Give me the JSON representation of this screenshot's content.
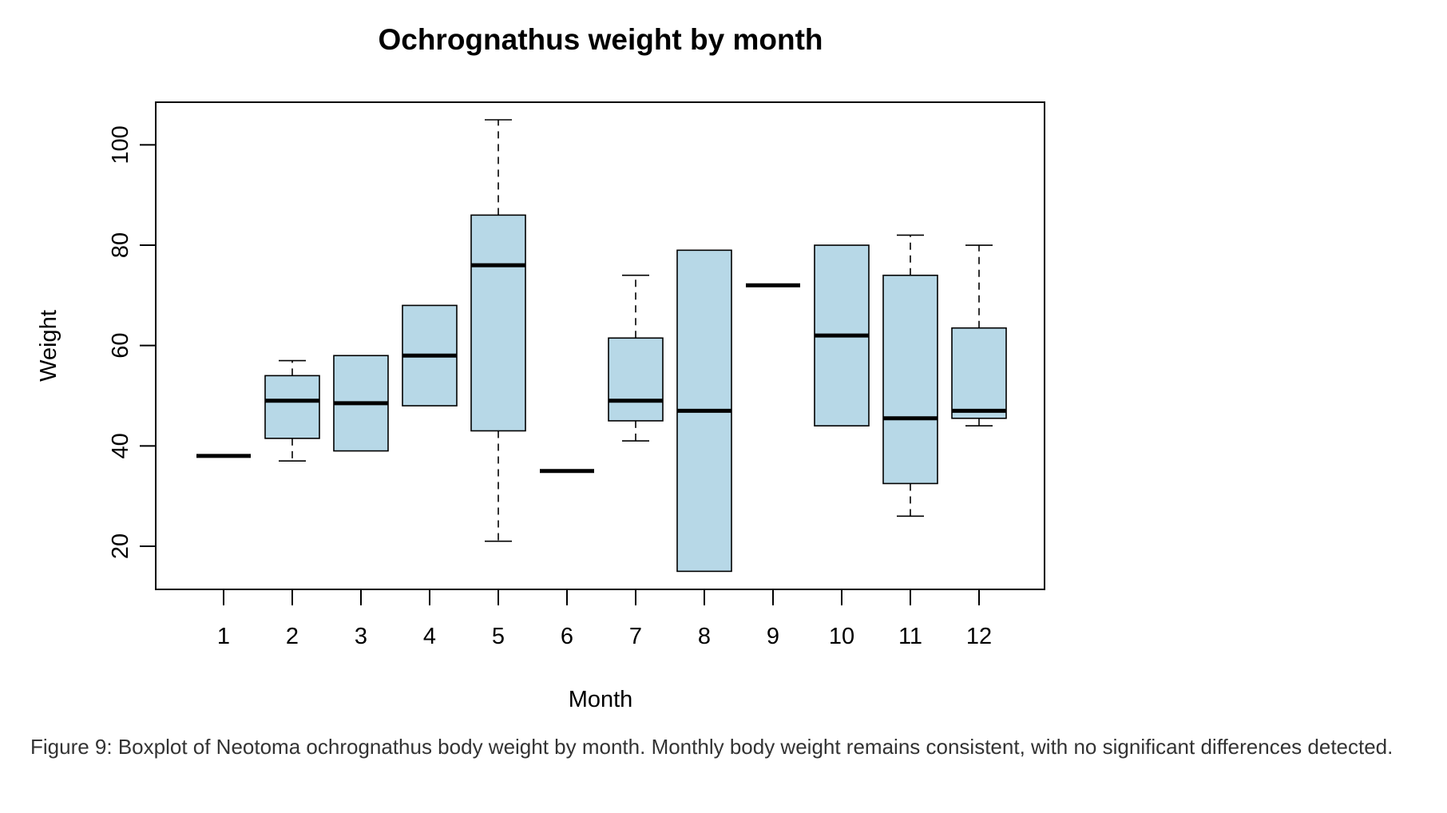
{
  "chart_data": {
    "type": "boxplot",
    "title": "Ochrognathus weight by month",
    "xlabel": "Month",
    "ylabel": "Weight",
    "ylim": [
      11.4,
      108.5
    ],
    "yticks": [
      20,
      40,
      60,
      80,
      100
    ],
    "categories": [
      "1",
      "2",
      "3",
      "4",
      "5",
      "6",
      "7",
      "8",
      "9",
      "10",
      "11",
      "12"
    ],
    "boxes": [
      {
        "min": 38,
        "q1": 38,
        "median": 38,
        "q3": 38,
        "max": 38
      },
      {
        "min": 37,
        "q1": 41.5,
        "median": 49,
        "q3": 54,
        "max": 57
      },
      {
        "min": 39,
        "q1": 39,
        "median": 48.5,
        "q3": 58,
        "max": 58
      },
      {
        "min": 48,
        "q1": 48,
        "median": 58,
        "q3": 68,
        "max": 68
      },
      {
        "min": 21,
        "q1": 43,
        "median": 76,
        "q3": 86,
        "max": 105
      },
      {
        "min": 35,
        "q1": 35,
        "median": 35,
        "q3": 35,
        "max": 35
      },
      {
        "min": 41,
        "q1": 45,
        "median": 49,
        "q3": 61.5,
        "max": 74
      },
      {
        "min": 15,
        "q1": 15,
        "median": 47,
        "q3": 79,
        "max": 79
      },
      {
        "min": 72,
        "q1": 72,
        "median": 72,
        "q3": 72,
        "max": 72
      },
      {
        "min": 44,
        "q1": 44,
        "median": 62,
        "q3": 80,
        "max": 80
      },
      {
        "min": 26,
        "q1": 32.5,
        "median": 45.5,
        "q3": 74,
        "max": 82
      },
      {
        "min": 44,
        "q1": 45.5,
        "median": 47,
        "q3": 63.5,
        "max": 80
      }
    ],
    "box_color": "#b7d8e7",
    "grid": false,
    "legend": "none"
  },
  "caption": "Figure 9: Boxplot of Neotoma ochrognathus body weight by month. Monthly body weight remains consistent, with no significant differences detected."
}
